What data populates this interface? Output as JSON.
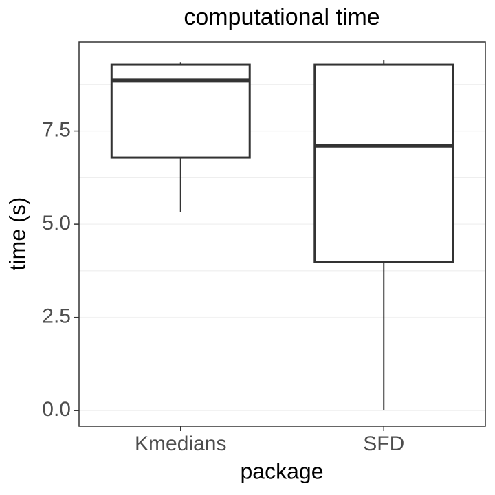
{
  "chart_data": {
    "type": "box",
    "title": "computational time",
    "x_label": "package",
    "y_label": "time (s)",
    "categories": [
      "Kmedians",
      "SFD"
    ],
    "min": [
      5.33,
      0.02
    ],
    "q1": [
      6.79,
      3.99
    ],
    "median": [
      8.86,
      7.1
    ],
    "q3": [
      9.28,
      9.28
    ],
    "max": [
      9.35,
      9.41
    ],
    "color": "#333333",
    "ylim": [
      -0.42,
      9.89
    ],
    "yticks": [
      {
        "value": 0,
        "label": "0.0"
      },
      2.5,
      {
        "value": 5,
        "label": "5.0"
      },
      7.5
    ],
    "grid": true
  }
}
